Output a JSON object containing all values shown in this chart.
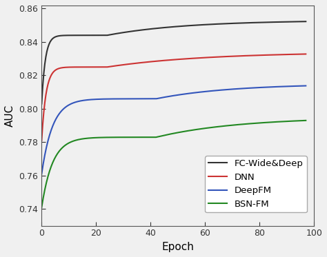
{
  "title": "",
  "xlabel": "Epoch",
  "ylabel": "AUC",
  "xlim": [
    0,
    100
  ],
  "ylim": [
    0.73,
    0.862
  ],
  "yticks": [
    0.74,
    0.76,
    0.78,
    0.8,
    0.82,
    0.84,
    0.86
  ],
  "xticks": [
    0,
    20,
    40,
    60,
    80,
    100
  ],
  "lines": [
    {
      "label": "FC-Wide&Deep",
      "color": "#333333",
      "y0": 0.803,
      "y_knee": 0.844,
      "x_knee": 8,
      "y_end": 0.853,
      "rate1": 6.0,
      "rate2": 0.025
    },
    {
      "label": "DNN",
      "color": "#cc3333",
      "y0": 0.781,
      "y_knee": 0.825,
      "x_knee": 8,
      "y_end": 0.834,
      "rate1": 5.0,
      "rate2": 0.02
    },
    {
      "label": "DeepFM",
      "color": "#3355bb",
      "y0": 0.761,
      "y_knee": 0.806,
      "x_knee": 14,
      "y_end": 0.815,
      "rate1": 3.5,
      "rate2": 0.02
    },
    {
      "label": "BSN-FM",
      "color": "#228822",
      "y0": 0.741,
      "y_knee": 0.783,
      "x_knee": 14,
      "y_end": 0.795,
      "rate1": 3.5,
      "rate2": 0.018
    }
  ],
  "legend_loc": "lower right",
  "legend_fontsize": 9.5,
  "linewidth": 1.5,
  "tick_labelsize": 9,
  "xlabel_fontsize": 11,
  "ylabel_fontsize": 11,
  "fig_facecolor": "#f0f0f0"
}
